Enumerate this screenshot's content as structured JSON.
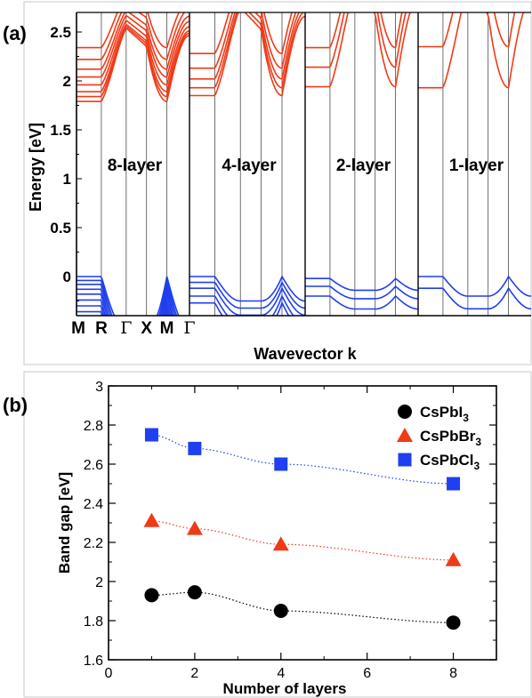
{
  "panels": {
    "a": {
      "label": "(a)",
      "ylabel": "Energy [eV]",
      "xlabel": "Wavevector k",
      "ytick_labels": [
        "2.5",
        "2",
        "1.5",
        "1",
        "0.5",
        "0"
      ],
      "kpoint_labels": [
        "M",
        "R",
        "Γ",
        "X",
        "M",
        "Γ"
      ]
    },
    "b": {
      "label": "(b)",
      "xlabel": "Number of layers",
      "ylabel": "Band gap [eV]",
      "xtick_labels": [
        "0",
        "2",
        "4",
        "6",
        "8"
      ],
      "ytick_labels": [
        "1.6",
        "1.8",
        "2",
        "2.2",
        "2.4",
        "2.6",
        "2.8",
        "3"
      ]
    }
  },
  "colors": {
    "conduction": "#f03a17",
    "valence": "#1f3ff0",
    "CsPbI3": "#000000",
    "CsPbBr3": "#f03a17",
    "CsPbCl3": "#1f3ff0",
    "axis": "#000000",
    "frame": "#c8c8c8"
  },
  "chart_data": [
    {
      "type": "line",
      "title": "",
      "panel": "(a)",
      "xlabel": "Wavevector k",
      "ylabel": "Energy [eV]",
      "ylim": [
        -0.4,
        2.7
      ],
      "k_path": [
        "M",
        "R",
        "Γ",
        "X",
        "M",
        "Γ"
      ],
      "subpanels": [
        {
          "name": "8-layer",
          "cbm_eV": 1.79,
          "vbm_eV": 0.0,
          "conduction_band_count": 8,
          "valence_band_count": 8
        },
        {
          "name": "4-layer",
          "cbm_eV": 1.85,
          "vbm_eV": 0.0,
          "conduction_band_count": 5,
          "valence_band_count": 5
        },
        {
          "name": "2-layer",
          "cbm_eV": 1.94,
          "vbm_eV": -0.02,
          "conduction_band_count": 3,
          "valence_band_count": 3
        },
        {
          "name": "1-layer",
          "cbm_eV": 1.93,
          "vbm_eV": 0.0,
          "conduction_band_count": 2,
          "valence_band_count": 2
        }
      ]
    },
    {
      "type": "scatter",
      "title": "",
      "panel": "(b)",
      "xlabel": "Number of layers",
      "ylabel": "Band gap [eV]",
      "xlim": [
        0,
        9
      ],
      "ylim": [
        1.6,
        3.0
      ],
      "grid": false,
      "legend_position": "top-right",
      "series": [
        {
          "name": "CsPbI",
          "subscript": "3",
          "marker": "circle",
          "x": [
            1,
            2,
            4,
            8
          ],
          "y": [
            1.93,
            1.945,
            1.85,
            1.79
          ]
        },
        {
          "name": "CsPbBr",
          "subscript": "3",
          "marker": "triangle",
          "x": [
            1,
            2,
            4,
            8
          ],
          "y": [
            2.31,
            2.27,
            2.19,
            2.11
          ]
        },
        {
          "name": "CsPbCl",
          "subscript": "3",
          "marker": "square",
          "x": [
            1,
            2,
            4,
            8
          ],
          "y": [
            2.75,
            2.68,
            2.6,
            2.5
          ]
        }
      ]
    }
  ]
}
